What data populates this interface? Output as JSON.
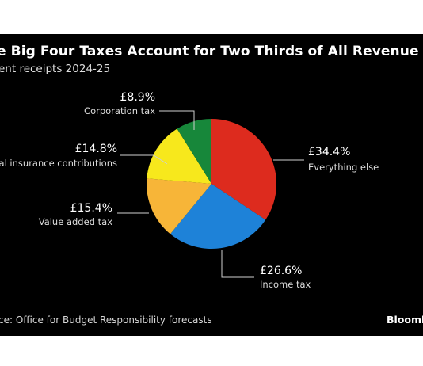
{
  "chart_data": {
    "type": "pie",
    "title": "e Big Four Taxes Account for Two Thirds of All Revenue",
    "subtitle": "ent receipts 2024-25",
    "slices": [
      {
        "label": "Everything else",
        "value_label": "£34.4%",
        "value": 34.4,
        "color": "#dd2b1e"
      },
      {
        "label": "Income tax",
        "value_label": "£26.6%",
        "value": 26.6,
        "color": "#1e82d8"
      },
      {
        "label": "Value added tax",
        "value_label": "£15.4%",
        "value": 15.4,
        "color": "#f7b538"
      },
      {
        "label": "al insurance contributions",
        "value_label": "£14.8%",
        "value": 14.8,
        "color": "#f7e81c"
      },
      {
        "label": "Corporation tax",
        "value_label": "£8.9%",
        "value": 8.9,
        "color": "#17873a"
      }
    ],
    "source": "ce: Office for Budget Responsibility forecasts",
    "brand": "Bloomb"
  }
}
